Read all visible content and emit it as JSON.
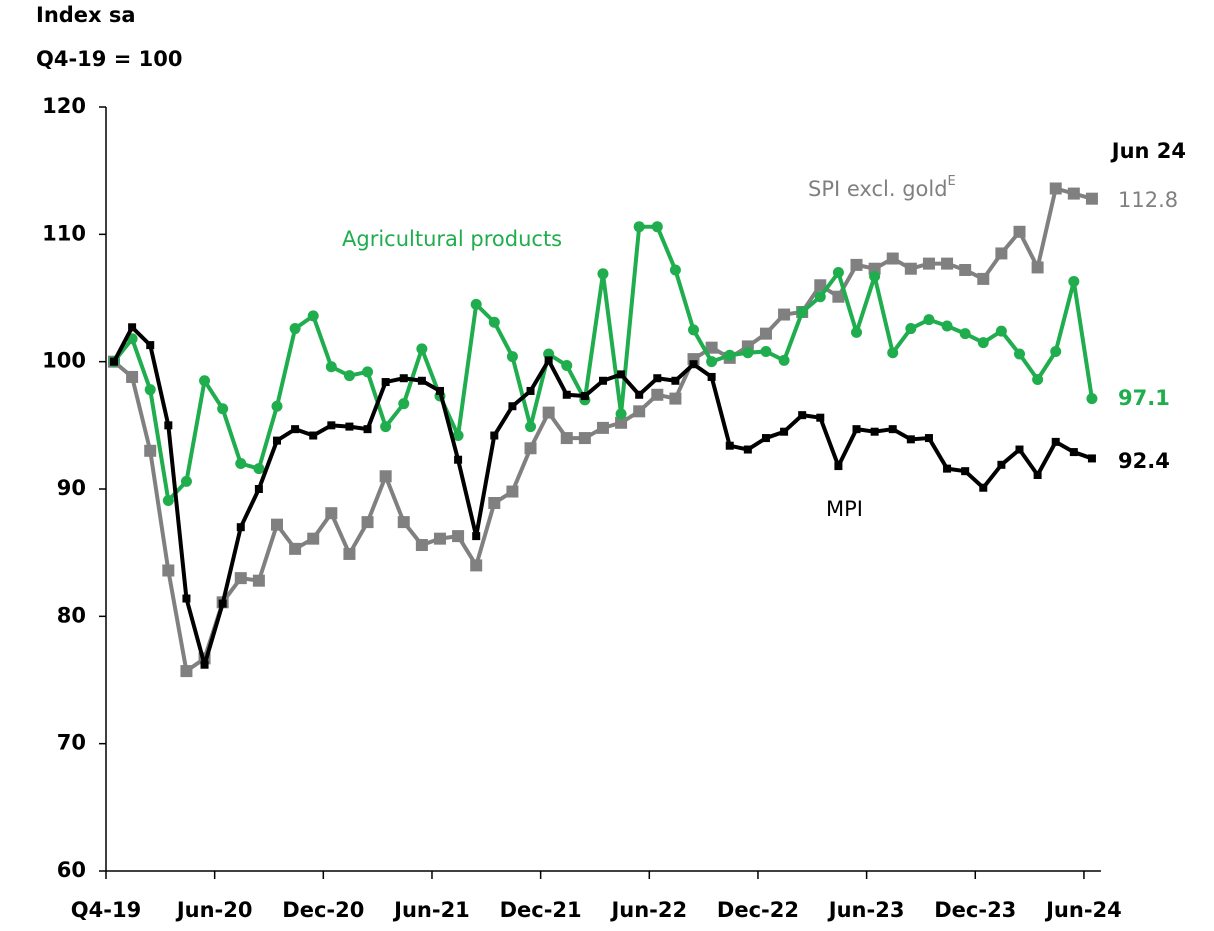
{
  "chart_data": {
    "type": "line",
    "y_label_lines": [
      "Index sa",
      "Q4-19 = 100"
    ],
    "date_label": "Jun 24",
    "categories": [
      "Q4-19",
      null,
      null,
      null,
      null,
      null,
      "Jun-20",
      null,
      null,
      null,
      null,
      null,
      "Dec-20",
      null,
      null,
      null,
      null,
      null,
      "Jun-21",
      null,
      null,
      null,
      null,
      null,
      "Dec-21",
      null,
      null,
      null,
      null,
      null,
      "Jun-22",
      null,
      null,
      null,
      null,
      null,
      "Dec-22",
      null,
      null,
      null,
      null,
      null,
      "Jun-23",
      null,
      null,
      null,
      null,
      null,
      "Dec-23",
      null,
      null,
      null,
      null,
      null,
      "Jun-24"
    ],
    "ylim": [
      60,
      120
    ],
    "yticks": [
      60,
      70,
      80,
      90,
      100,
      110,
      120
    ],
    "series": [
      {
        "name": "MPI",
        "color": "#000000",
        "marker": "square",
        "values": [
          100,
          102.7,
          101.3,
          95,
          81.4,
          76.2,
          81,
          87,
          90,
          93.8,
          94.7,
          94.2,
          95,
          94.9,
          94.7,
          98.4,
          98.7,
          98.5,
          97.7,
          92.3,
          86.3,
          94.2,
          96.5,
          97.7,
          100.1,
          97.4,
          97.3,
          98.5,
          99,
          97.4,
          98.7,
          98.5,
          99.8,
          98.8,
          93.4,
          93.1,
          94,
          94.5,
          95.8,
          95.6,
          91.8,
          94.7,
          94.5,
          94.7,
          93.9,
          94,
          91.6,
          91.4,
          90.1,
          91.9,
          93.1,
          91.1,
          93.7,
          92.9,
          92.4
        ]
      },
      {
        "name": "SPI excl. gold",
        "name_superscript": "E",
        "color": "#808080",
        "marker": "square",
        "values": [
          100,
          98.8,
          93,
          83.6,
          75.7,
          76.7,
          81.1,
          83,
          82.8,
          87.2,
          85.3,
          86.1,
          88.1,
          84.9,
          87.4,
          91,
          87.4,
          85.6,
          86.1,
          86.3,
          84,
          88.9,
          89.8,
          93.2,
          96,
          94,
          94,
          94.8,
          95.2,
          96.1,
          97.4,
          97.1,
          100.2,
          101.1,
          100.3,
          101.2,
          102.2,
          103.7,
          103.9,
          106,
          105.1,
          107.6,
          107.3,
          108.1,
          107.3,
          107.7,
          107.7,
          107.2,
          106.5,
          108.5,
          110.2,
          107.4,
          113.6,
          113.2,
          112.8
        ]
      },
      {
        "name": "Agricultural products",
        "color": "#1fad4e",
        "marker": "circle",
        "values": [
          100,
          101.8,
          97.8,
          89.1,
          90.6,
          98.5,
          96.3,
          92,
          91.6,
          96.5,
          102.6,
          103.6,
          99.6,
          98.9,
          99.2,
          94.9,
          96.7,
          101,
          97.3,
          94.2,
          104.5,
          103.1,
          100.4,
          94.9,
          100.6,
          99.7,
          97,
          106.9,
          95.9,
          110.6,
          110.6,
          107.2,
          102.5,
          100,
          100.5,
          100.7,
          100.8,
          100.1,
          103.9,
          105.1,
          107,
          102.3,
          106.7,
          100.7,
          102.6,
          103.3,
          102.8,
          102.2,
          101.5,
          102.4,
          100.6,
          98.6,
          100.8,
          106.3,
          97.1
        ]
      }
    ]
  }
}
